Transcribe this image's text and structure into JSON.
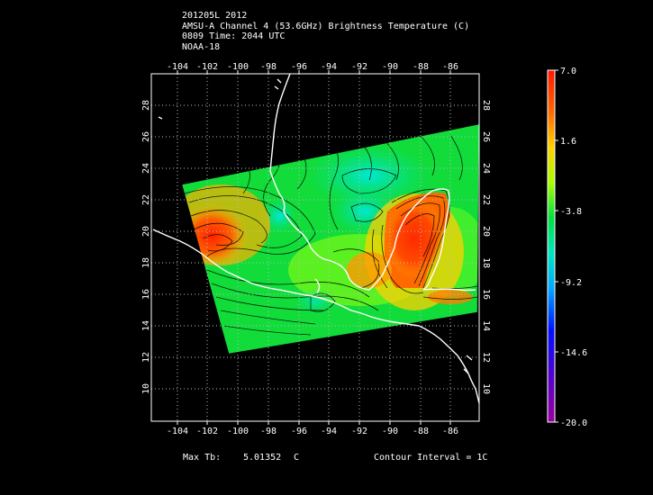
{
  "header": {
    "line1": "201205L 2012",
    "line2": "AMSU-A Channel 4 (53.6GHz) Brightness Temperature (C)",
    "line3": "0809 Time: 2044 UTC",
    "line4": "NOAA-18"
  },
  "map": {
    "lon_ticks": [
      "-104",
      "-102",
      "-100",
      "-98",
      "-96",
      "-94",
      "-92",
      "-90",
      "-88",
      "-86"
    ],
    "lat_ticks": [
      "10",
      "12",
      "14",
      "16",
      "18",
      "20",
      "22",
      "24",
      "26",
      "28"
    ]
  },
  "colorbar": {
    "labels": [
      "7.0",
      "1.6",
      "-3.8",
      "-9.2",
      "-14.6",
      "-20.0"
    ],
    "colors": [
      "#ff1a00",
      "#ff7a00",
      "#ffd800",
      "#a0ff00",
      "#00e060",
      "#00e0d0",
      "#0080ff",
      "#0000ff",
      "#6000c0",
      "#a000a0"
    ]
  },
  "footer": {
    "max_label": "Max Tb:",
    "max_value": "5.01352",
    "max_unit": "C",
    "contour": "Contour Interval = 1C"
  }
}
